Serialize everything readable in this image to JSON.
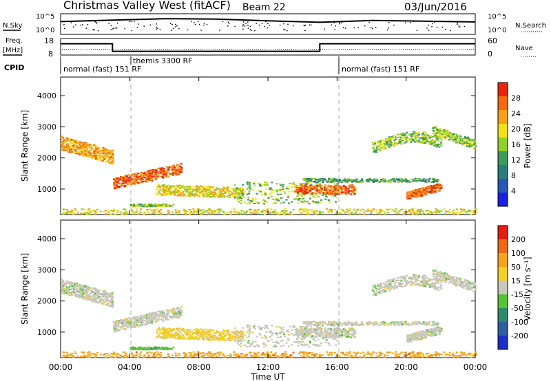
{
  "header": {
    "title": "Christmas Valley West (fitACF)",
    "beam": "Beam 22",
    "date": "03/Jun/2016"
  },
  "nsky_panel": {
    "left_label": "N.Sky",
    "left_ticks": [
      "10^5",
      "10^0"
    ],
    "right_ticks": [
      "10^5",
      "10^0"
    ],
    "right_label": "N.Search",
    "right_legend_line": "dotted"
  },
  "freq_panel": {
    "left_label_1": "Freq.",
    "left_label_2": "[MHz]",
    "left_ticks": [
      "18",
      "8"
    ],
    "right_ticks": [
      "60",
      "0"
    ],
    "right_label": "Nave",
    "right_legend_line": "dotted"
  },
  "cpid_panel": {
    "label": "CPID",
    "entries": [
      {
        "text": "normal (fast) 151 RF",
        "start_hour": 0
      },
      {
        "text": "themis 3300 RF",
        "start_hour": 4
      },
      {
        "text": "normal (fast) 151 RF",
        "start_hour": 16
      }
    ]
  },
  "power_panel": {
    "ylabel": "Slant Range [km]",
    "yticks": [
      "1000",
      "2000",
      "3000",
      "4000"
    ],
    "colorbar_label": "Power [dB]",
    "colorbar_ticks": [
      "4",
      "8",
      "12",
      "16",
      "20",
      "24",
      "28"
    ],
    "colorbar_colors": [
      "#1b1fe0",
      "#2a56b6",
      "#2e7b7b",
      "#3d9a5a",
      "#8fcf2a",
      "#f2e21e",
      "#f7a11a",
      "#f26a13",
      "#e6250f"
    ]
  },
  "velocity_panel": {
    "ylabel": "Slant Range [km]",
    "yticks": [
      "1000",
      "2000",
      "3000",
      "4000"
    ],
    "colorbar_label": "Velocity [m s⁻¹]",
    "colorbar_ticks": [
      "200",
      "100",
      "50",
      "15",
      "-15",
      "-50",
      "-100",
      "-200"
    ],
    "colorbar_colors": [
      "#1d2fc7",
      "#2d5f9f",
      "#2f8a67",
      "#58c236",
      "#c8c7bd",
      "#f2d02b",
      "#f5a51c",
      "#ef6a16",
      "#e01f10"
    ]
  },
  "xaxis": {
    "label": "Time UT",
    "ticks": [
      "00:00",
      "04:00",
      "08:00",
      "12:00",
      "16:00",
      "20:00",
      "00:00"
    ]
  },
  "chart_data": [
    {
      "type": "line",
      "title": "Christmas Valley West (fitACF)",
      "ylabel": "N.Sky",
      "x": [
        0,
        3,
        6,
        9,
        12,
        15,
        18,
        21,
        24
      ],
      "series": [
        {
          "values": [
            3.2,
            3.6,
            4.0,
            3.9,
            3.4,
            3.0,
            3.5,
            3.3,
            3.1
          ]
        }
      ],
      "ylim": [
        0,
        5
      ],
      "xlabel": "Time UT"
    },
    {
      "type": "line",
      "ylabel": "Freq. [MHz]",
      "x": [
        0,
        3,
        3,
        15,
        15,
        24
      ],
      "series": [
        {
          "values": [
            15,
            15,
            10,
            10,
            15,
            15
          ]
        }
      ],
      "ylim": [
        8,
        18
      ]
    },
    {
      "type": "heatmap",
      "ylabel": "Slant Range [km]",
      "xlabel": "Time UT",
      "xlim": [
        0,
        24
      ],
      "ylim": [
        180,
        4600
      ],
      "colorbar": "Power [dB]",
      "clim": [
        0,
        32
      ]
    },
    {
      "type": "heatmap",
      "ylabel": "Slant Range [km]",
      "xlabel": "Time UT",
      "xlim": [
        0,
        24
      ],
      "ylim": [
        180,
        4600
      ],
      "colorbar": "Velocity [m s⁻¹]",
      "clim": [
        -200,
        200
      ]
    }
  ]
}
